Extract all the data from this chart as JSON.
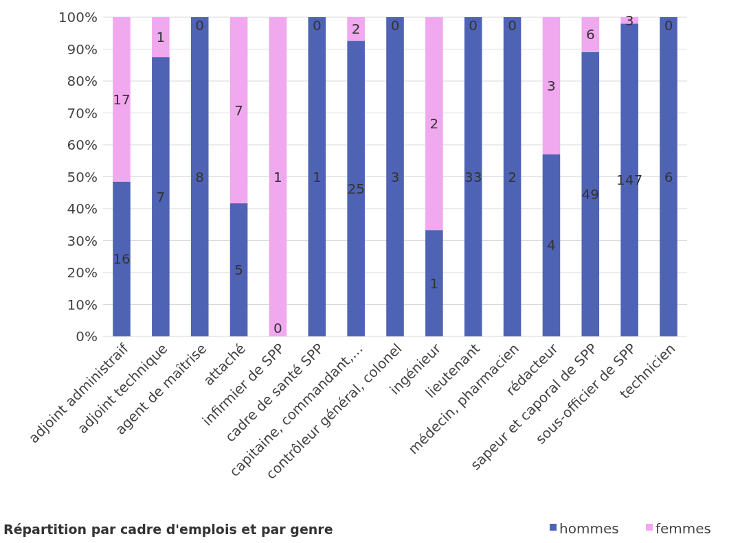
{
  "chart_data": {
    "type": "bar",
    "stacked": true,
    "title": "Répartition par cadre d'emplois et par genre",
    "categories": [
      "adjoint administraif",
      "adjoint technique",
      "agent de maîtrise",
      "attaché",
      "infirmier de SPP",
      "cadre de santé SPP",
      "capitaine, commandant,…",
      "contrôleur général, colonel",
      "ingénieur",
      "lieutenant",
      "médecin, pharmacien",
      "rédacteur",
      "sapeur et caporal de SPP",
      "sous-officier de SPP",
      "technicien"
    ],
    "series": [
      {
        "name": "hommes",
        "color": "#4f63b5",
        "values": [
          48.5,
          87.5,
          100,
          41.7,
          0,
          100,
          92.6,
          100,
          33.3,
          100,
          100,
          57.1,
          89.1,
          98,
          100
        ]
      },
      {
        "name": "femmes",
        "color": "#f0a8ee",
        "values": [
          51.5,
          12.5,
          0,
          58.3,
          100,
          0,
          7.4,
          0,
          66.7,
          0,
          0,
          42.9,
          10.9,
          2,
          0
        ]
      }
    ],
    "annotations": [
      "16",
      "17",
      "7",
      "1",
      "8",
      "0",
      "5",
      "7",
      "0",
      "1",
      "1",
      "0",
      "25",
      "2",
      "3",
      "0",
      "1",
      "2",
      "33",
      "0",
      "2",
      "0",
      "4",
      "3",
      "49",
      "6",
      "147",
      "3",
      "6",
      "0"
    ],
    "ylim": [
      0,
      100
    ],
    "yticks": [
      {
        "value": 0,
        "label": "0%"
      },
      {
        "value": 10,
        "label": "10%"
      },
      {
        "value": 20,
        "label": "20%"
      },
      {
        "value": 30,
        "label": "30%"
      },
      {
        "value": 40,
        "label": "40%"
      },
      {
        "value": 50,
        "label": "50%"
      },
      {
        "value": 60,
        "label": "60%"
      },
      {
        "value": 70,
        "label": "70%"
      },
      {
        "value": 80,
        "label": "80%"
      },
      {
        "value": 90,
        "label": "90%"
      },
      {
        "value": 100,
        "label": "100%"
      }
    ],
    "grid": "y",
    "legend": "bottom right"
  }
}
